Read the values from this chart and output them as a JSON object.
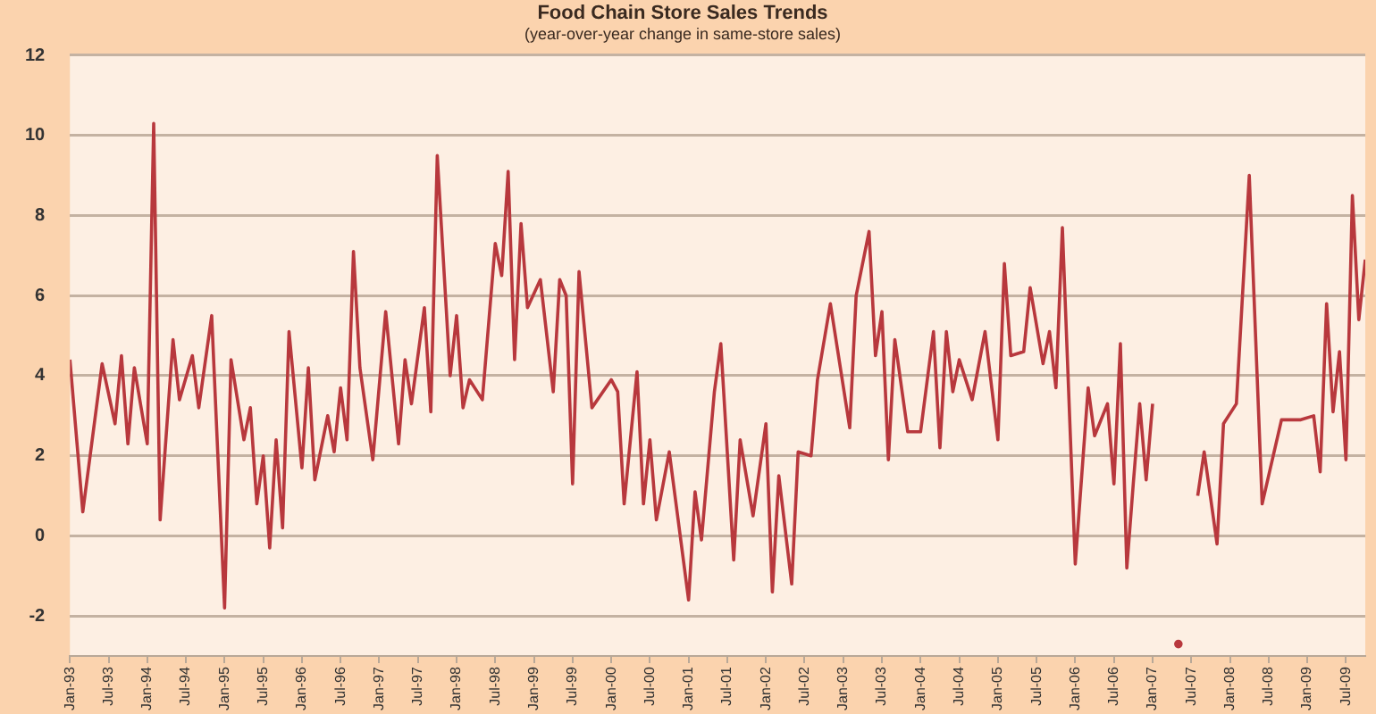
{
  "chart_data": {
    "type": "line",
    "title": "Food Chain Store Sales Trends",
    "subtitle": "(year-over-year change in same-store sales)",
    "x": [
      "1993-01",
      "1993-03",
      "1993-06",
      "1993-08",
      "1993-09",
      "1993-10",
      "1993-11",
      "1994-01",
      "1994-02",
      "1994-03",
      "1994-05",
      "1994-06",
      "1994-08",
      "1994-09",
      "1994-11",
      "1995-01",
      "1995-02",
      "1995-04",
      "1995-05",
      "1995-06",
      "1995-07",
      "1995-08",
      "1995-09",
      "1995-10",
      "1995-11",
      "1996-01",
      "1996-02",
      "1996-03",
      "1996-05",
      "1996-06",
      "1996-07",
      "1996-08",
      "1996-09",
      "1996-10",
      "1996-12",
      "1997-02",
      "1997-04",
      "1997-05",
      "1997-06",
      "1997-08",
      "1997-09",
      "1997-10",
      "1997-12",
      "1998-01",
      "1998-02",
      "1998-03",
      "1998-05",
      "1998-07",
      "1998-08",
      "1998-09",
      "1998-10",
      "1998-11",
      "1998-12",
      "1999-02",
      "1999-04",
      "1999-05",
      "1999-06",
      "1999-07",
      "1999-08",
      "1999-10",
      "2000-01",
      "2000-02",
      "2000-03",
      "2000-05",
      "2000-06",
      "2000-07",
      "2000-08",
      "2000-10",
      "2001-01",
      "2001-02",
      "2001-03",
      "2001-05",
      "2001-06",
      "2001-08",
      "2001-09",
      "2001-11",
      "2002-01",
      "2002-02",
      "2002-03",
      "2002-05",
      "2002-06",
      "2002-08",
      "2002-09",
      "2002-11",
      "2003-02",
      "2003-03",
      "2003-05",
      "2003-06",
      "2003-07",
      "2003-08",
      "2003-09",
      "2003-11",
      "2004-01",
      "2004-03",
      "2004-04",
      "2004-05",
      "2004-06",
      "2004-07",
      "2004-09",
      "2004-11",
      "2005-01",
      "2005-02",
      "2005-03",
      "2005-05",
      "2005-06",
      "2005-08",
      "2005-09",
      "2005-10",
      "2005-11",
      "2006-01",
      "2006-03",
      "2006-04",
      "2006-06",
      "2006-07",
      "2006-08",
      "2006-09",
      "2006-10",
      "2006-11",
      "2006-12",
      "2007-01",
      "2007-02",
      "2007-03",
      "2007-05",
      "2007-07",
      "2007-08",
      "2007-09",
      "2007-11",
      "2007-12",
      "2008-02",
      "2008-04",
      "2008-06",
      "2008-09",
      "2008-12",
      "2009-02",
      "2009-03",
      "2009-04",
      "2009-05",
      "2009-06",
      "2009-07",
      "2009-08",
      "2009-09",
      "2009-10"
    ],
    "series": [
      {
        "color": "#b8383d",
        "values": [
          4.4,
          0.6,
          4.3,
          2.8,
          4.5,
          2.3,
          4.2,
          2.3,
          10.3,
          0.4,
          4.9,
          3.4,
          4.5,
          3.2,
          5.5,
          -1.8,
          4.4,
          2.4,
          3.2,
          0.8,
          2.0,
          -0.3,
          2.4,
          0.2,
          5.1,
          1.7,
          4.2,
          1.4,
          3.0,
          2.1,
          3.7,
          2.4,
          7.1,
          4.2,
          1.9,
          5.6,
          2.3,
          4.4,
          3.3,
          5.7,
          3.1,
          9.5,
          4.0,
          5.5,
          3.2,
          3.9,
          3.4,
          7.3,
          6.5,
          9.1,
          4.4,
          7.8,
          5.7,
          6.4,
          3.6,
          6.4,
          6.0,
          1.3,
          6.6,
          3.2,
          3.9,
          3.6,
          0.8,
          4.1,
          0.8,
          2.4,
          0.4,
          2.1,
          -1.6,
          1.1,
          -0.1,
          3.6,
          4.8,
          -0.6,
          2.4,
          0.5,
          2.8,
          -1.4,
          1.5,
          -1.2,
          2.1,
          2.0,
          3.9,
          5.8,
          2.7,
          6.0,
          7.6,
          4.5,
          5.6,
          1.9,
          4.9,
          2.6,
          2.6,
          5.1,
          2.2,
          5.1,
          3.6,
          4.4,
          3.4,
          5.1,
          2.4,
          6.8,
          4.5,
          4.6,
          6.2,
          4.3,
          5.1,
          3.7,
          7.7,
          -0.7,
          3.7,
          2.5,
          3.3,
          1.3,
          4.8,
          -0.8,
          1.3,
          3.3,
          1.4,
          3.3,
          null,
          null,
          -2.7,
          null,
          1.0,
          2.1,
          -0.2,
          2.8,
          3.3,
          9.0,
          0.8,
          2.9,
          2.9,
          3.0,
          1.6,
          5.8,
          3.1,
          4.6,
          1.9,
          8.5,
          5.4,
          6.9
        ]
      }
    ],
    "xlim": [
      "1993-01",
      "2009-10"
    ],
    "xticks": [
      {
        "value": "1993-01",
        "label": "Jan-93"
      },
      {
        "value": "1993-07",
        "label": "Jul-93"
      },
      {
        "value": "1994-01",
        "label": "Jan-94"
      },
      {
        "value": "1994-07",
        "label": "Jul-94"
      },
      {
        "value": "1995-01",
        "label": "Jan-95"
      },
      {
        "value": "1995-07",
        "label": "Jul-95"
      },
      {
        "value": "1996-01",
        "label": "Jan-96"
      },
      {
        "value": "1996-07",
        "label": "Jul-96"
      },
      {
        "value": "1997-01",
        "label": "Jan-97"
      },
      {
        "value": "1997-07",
        "label": "Jul-97"
      },
      {
        "value": "1998-01",
        "label": "Jan-98"
      },
      {
        "value": "1998-07",
        "label": "Jul-98"
      },
      {
        "value": "1999-01",
        "label": "Jan-99"
      },
      {
        "value": "1999-07",
        "label": "Jul-99"
      },
      {
        "value": "2000-01",
        "label": "Jan-00"
      },
      {
        "value": "2000-07",
        "label": "Jul-00"
      },
      {
        "value": "2001-01",
        "label": "Jan-01"
      },
      {
        "value": "2001-07",
        "label": "Jul-01"
      },
      {
        "value": "2002-01",
        "label": "Jan-02"
      },
      {
        "value": "2002-07",
        "label": "Jul-02"
      },
      {
        "value": "2003-01",
        "label": "Jan-03"
      },
      {
        "value": "2003-07",
        "label": "Jul-03"
      },
      {
        "value": "2004-01",
        "label": "Jan-04"
      },
      {
        "value": "2004-07",
        "label": "Jul-04"
      },
      {
        "value": "2005-01",
        "label": "Jan-05"
      },
      {
        "value": "2005-07",
        "label": "Jul-05"
      },
      {
        "value": "2006-01",
        "label": "Jan-06"
      },
      {
        "value": "2006-07",
        "label": "Jul-06"
      },
      {
        "value": "2007-01",
        "label": "Jan-07"
      },
      {
        "value": "2007-07",
        "label": "Jul-07"
      },
      {
        "value": "2008-01",
        "label": "Jan-08"
      },
      {
        "value": "2008-07",
        "label": "Jul-08"
      },
      {
        "value": "2009-01",
        "label": "Jan-09"
      },
      {
        "value": "2009-07",
        "label": "Jul-09"
      }
    ],
    "ylim": [
      -3,
      12
    ],
    "yticks": [
      -2,
      0,
      2,
      4,
      6,
      8,
      10,
      12
    ],
    "grid": "y",
    "legend": false,
    "marker": "none",
    "line_style": "solid"
  }
}
